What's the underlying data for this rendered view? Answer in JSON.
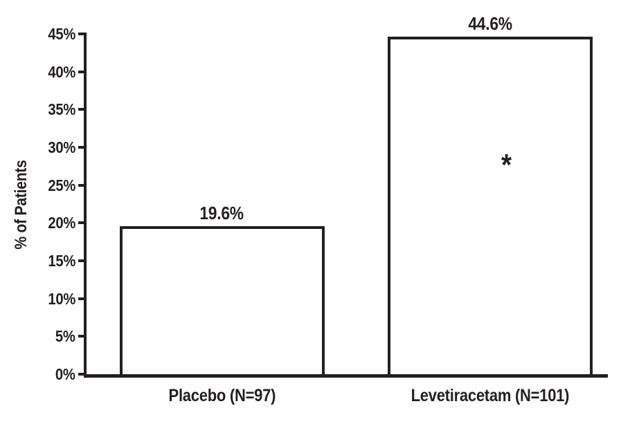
{
  "figure": {
    "background": "#ffffff",
    "ink_color": "#231f20"
  },
  "chart_data": {
    "type": "bar",
    "title": "",
    "xlabel": "",
    "ylabel": "% of Patients",
    "ylim": [
      0,
      45
    ],
    "yticks": [
      0,
      5,
      10,
      15,
      20,
      25,
      30,
      35,
      40,
      45
    ],
    "ytick_labels": [
      "0%",
      "5%",
      "10%",
      "15%",
      "20%",
      "25%",
      "30%",
      "35%",
      "40%",
      "45%"
    ],
    "categories": [
      "Placebo (N=97)",
      "Levetiracetam (N=101)"
    ],
    "values": [
      19.6,
      44.6
    ],
    "value_labels": [
      "19.6%",
      "44.6%"
    ],
    "annotations": [
      {
        "bar_index": 1,
        "text": "*",
        "y_value": 28,
        "x_frac": 0.58
      }
    ],
    "bar_fill": "#ffffff",
    "bar_border": "#231f20",
    "grid": false,
    "legend": false
  }
}
